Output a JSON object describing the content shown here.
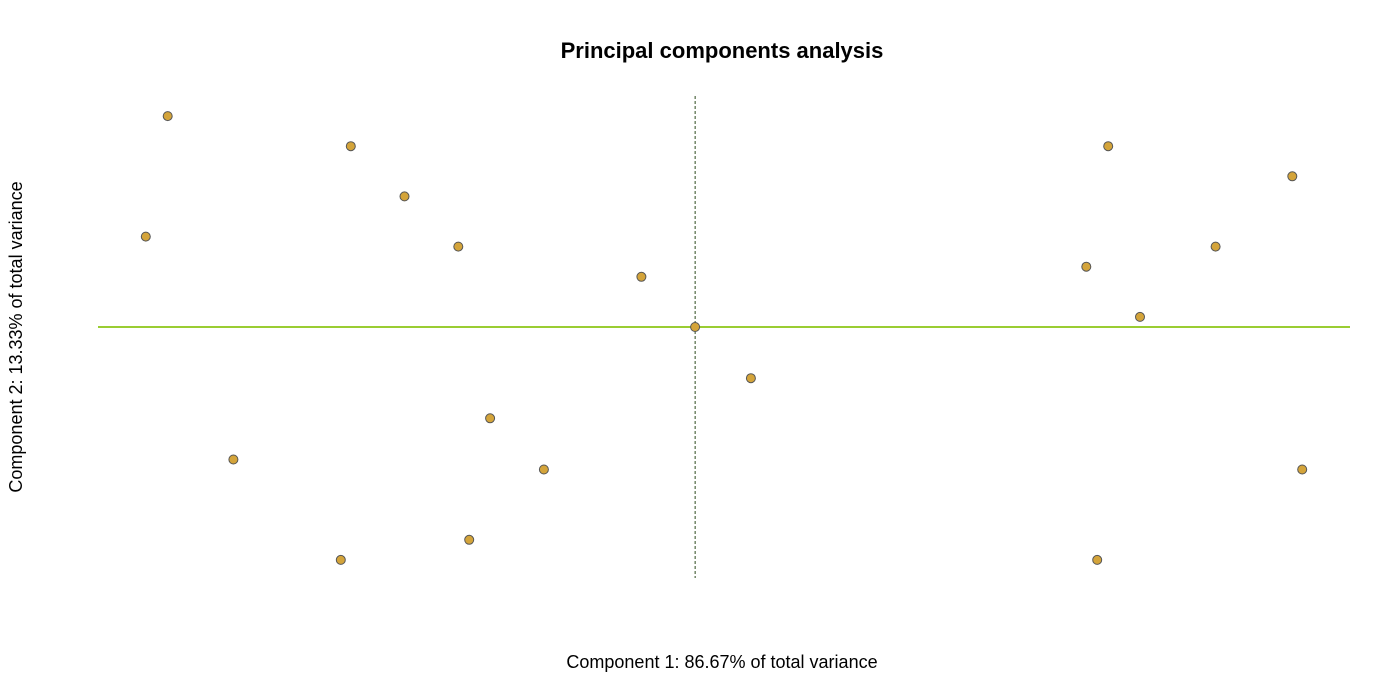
{
  "chart_data": {
    "type": "scatter",
    "title": "Principal components analysis",
    "xlabel": "Component 1: 86.67% of total variance",
    "ylabel": "Component 2: 13.33% of total variance",
    "xlim": [
      -6.0,
      6.58
    ],
    "ylim": [
      -2.5,
      2.3
    ],
    "grid": false,
    "reference_lines": {
      "horizontal_at": 0,
      "vertical_at": 0
    },
    "colors": {
      "point_fill": "#d4a43a",
      "point_stroke": "#555555",
      "horizontal_line": "#9acd32",
      "vertical_line": "#2e4a1e"
    },
    "points": [
      {
        "x": -5.3,
        "y": 2.1
      },
      {
        "x": -3.46,
        "y": 1.8
      },
      {
        "x": -2.92,
        "y": 1.3
      },
      {
        "x": -5.52,
        "y": 0.9
      },
      {
        "x": -2.38,
        "y": 0.8
      },
      {
        "x": -0.54,
        "y": 0.5
      },
      {
        "x": 0.0,
        "y": 0.0
      },
      {
        "x": 0.56,
        "y": -0.51
      },
      {
        "x": -2.06,
        "y": -0.91
      },
      {
        "x": -4.64,
        "y": -1.32
      },
      {
        "x": -1.52,
        "y": -1.42
      },
      {
        "x": -3.56,
        "y": -2.32
      },
      {
        "x": -2.27,
        "y": -2.12
      },
      {
        "x": 4.15,
        "y": 1.8
      },
      {
        "x": 6.0,
        "y": 1.5
      },
      {
        "x": 5.23,
        "y": 0.8
      },
      {
        "x": 3.93,
        "y": 0.6
      },
      {
        "x": 4.47,
        "y": 0.1
      },
      {
        "x": 6.1,
        "y": -1.42
      },
      {
        "x": 4.04,
        "y": -2.32
      }
    ]
  }
}
